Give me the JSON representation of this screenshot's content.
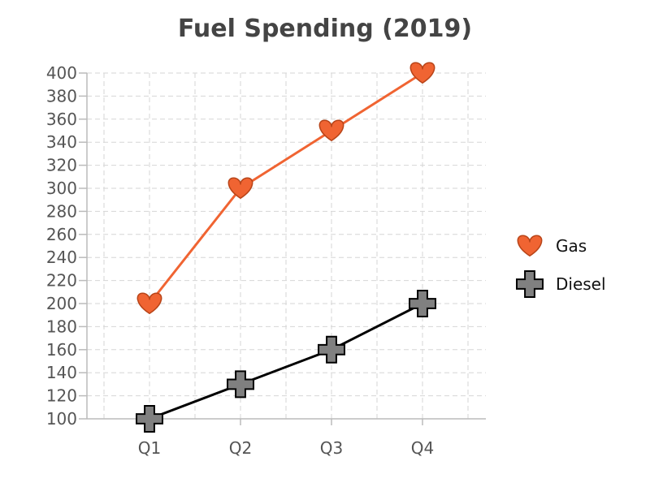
{
  "chart_data": {
    "type": "line",
    "title": "Fuel Spending (2019)",
    "xlabel": "",
    "ylabel": "",
    "categories": [
      "Q1",
      "Q2",
      "Q3",
      "Q4"
    ],
    "ylim": [
      100,
      400
    ],
    "yticks": [
      100,
      120,
      140,
      160,
      180,
      200,
      220,
      240,
      260,
      280,
      300,
      320,
      340,
      360,
      380,
      400
    ],
    "grid": true,
    "legend": "right",
    "series": [
      {
        "name": "Gas",
        "values": [
          200,
          300,
          350,
          400
        ],
        "color": "#f06432",
        "marker": "heart-icon"
      },
      {
        "name": "Diesel",
        "values": [
          100,
          130,
          160,
          200
        ],
        "color": "#000000",
        "marker_fill": "#808080",
        "marker": "plus-icon"
      }
    ]
  }
}
